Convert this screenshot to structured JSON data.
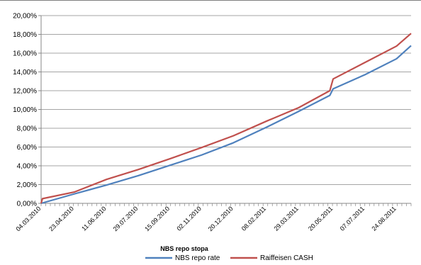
{
  "chart_data": {
    "type": "line",
    "title": "NBS repo stopa",
    "xlabel": "",
    "ylabel": "",
    "x_ticks": [
      "04.03.2010",
      "23.04.2010",
      "11.06.2010",
      "29.07.2010",
      "15.09.2010",
      "02.11.2010",
      "20.12.2010",
      "08.02.2011",
      "29.03.2011",
      "20.05.2011",
      "07.07.2011",
      "24.08.2011"
    ],
    "y_ticks": [
      "0,00%",
      "2,00%",
      "4,00%",
      "6,00%",
      "8,00%",
      "10,00%",
      "12,00%",
      "14,00%",
      "16,00%",
      "18,00%",
      "20,00%"
    ],
    "ylim": [
      0,
      20
    ],
    "xlim": [
      "04.03.2010",
      "15.09.2011"
    ],
    "grid": "horizontal",
    "legend": "bottom",
    "series": [
      {
        "name": "NBS repo rate",
        "color": "#4f81bd",
        "points": [
          [
            "04.03.2010",
            0.0
          ],
          [
            "23.04.2010",
            1.0
          ],
          [
            "11.06.2010",
            1.95
          ],
          [
            "29.07.2010",
            2.95
          ],
          [
            "15.09.2010",
            4.05
          ],
          [
            "02.11.2010",
            5.15
          ],
          [
            "20.12.2010",
            6.45
          ],
          [
            "08.02.2011",
            8.1
          ],
          [
            "29.03.2011",
            9.8
          ],
          [
            "15.05.2011",
            11.5
          ],
          [
            "20.05.2011",
            12.2
          ],
          [
            "07.07.2011",
            13.7
          ],
          [
            "24.08.2011",
            15.4
          ],
          [
            "15.09.2011",
            16.8
          ]
        ]
      },
      {
        "name": "Raiffeisen CASH",
        "color": "#c0504d",
        "points": [
          [
            "04.03.2010",
            0.0
          ],
          [
            "06.03.2010",
            0.5
          ],
          [
            "23.04.2010",
            1.2
          ],
          [
            "11.06.2010",
            2.55
          ],
          [
            "29.07.2010",
            3.6
          ],
          [
            "15.09.2010",
            4.75
          ],
          [
            "02.11.2010",
            5.95
          ],
          [
            "20.12.2010",
            7.2
          ],
          [
            "08.02.2011",
            8.75
          ],
          [
            "29.03.2011",
            10.2
          ],
          [
            "15.05.2011",
            12.0
          ],
          [
            "20.05.2011",
            13.25
          ],
          [
            "07.07.2011",
            15.0
          ],
          [
            "24.08.2011",
            16.75
          ],
          [
            "15.09.2011",
            18.1
          ]
        ]
      }
    ]
  }
}
